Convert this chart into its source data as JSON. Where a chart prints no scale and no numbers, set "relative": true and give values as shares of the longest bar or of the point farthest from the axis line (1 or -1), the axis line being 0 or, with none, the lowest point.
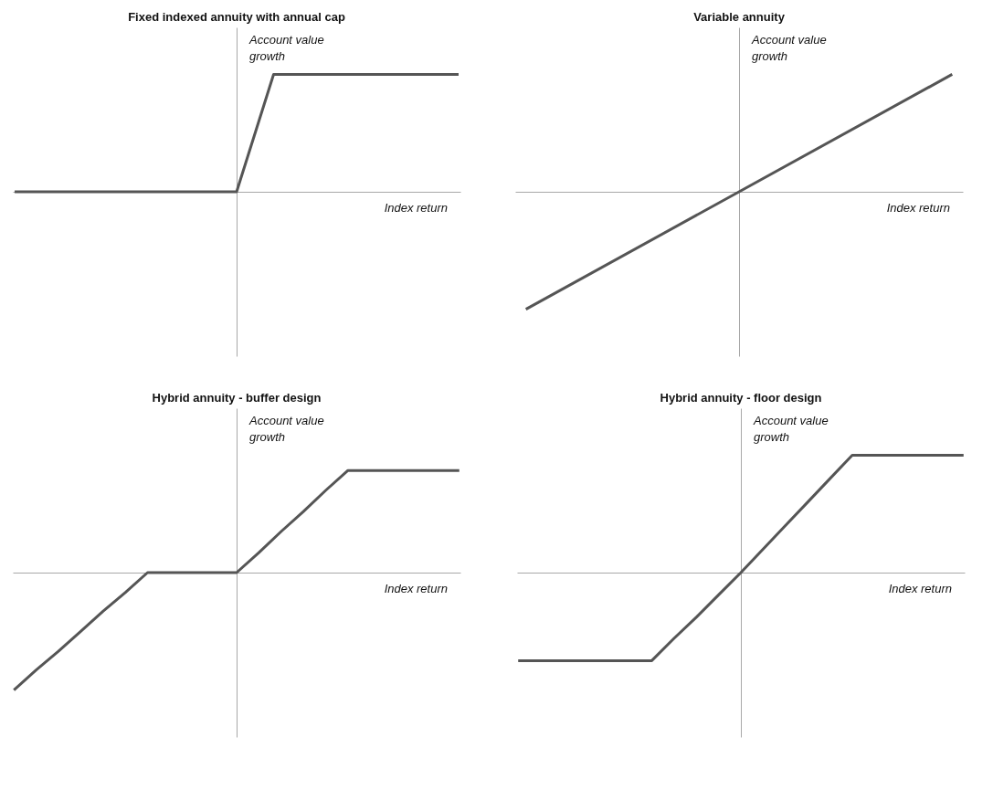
{
  "chart_data": [
    {
      "type": "line",
      "title": "Fixed indexed annuity with annual cap",
      "xlabel": "Index return",
      "ylabel": "Account value growth",
      "relative": true,
      "categories": [
        null,
        null,
        null,
        null,
        null,
        null,
        null,
        null,
        null,
        null,
        null,
        null,
        null
      ],
      "series": [
        {
          "color": "#555555",
          "values": [
            0,
            0,
            0,
            0,
            0,
            0,
            0,
            1,
            1,
            1,
            1,
            1,
            1
          ]
        }
      ]
    },
    {
      "type": "line",
      "title": "Variable annuity",
      "xlabel": "Index return",
      "ylabel": "Account value growth",
      "relative": true,
      "categories": [
        null,
        null,
        null
      ],
      "series": [
        {
          "color": "#555555",
          "values": [
            -1,
            0,
            1
          ]
        }
      ]
    },
    {
      "type": "line",
      "title": "Hybrid annuity - buffer design",
      "xlabel": "Index return",
      "ylabel": "Account value growth",
      "relative": true,
      "categories": [
        null,
        null,
        null,
        null,
        null,
        null,
        null,
        null,
        null,
        null,
        null,
        null,
        null,
        null,
        null,
        null,
        null,
        null,
        null,
        null,
        null
      ],
      "series": [
        {
          "color": "#555555",
          "values": [
            -1,
            -0.83,
            -0.67,
            -0.5,
            -0.33,
            -0.17,
            0,
            0,
            0,
            0,
            0,
            0.17,
            0.35,
            0.52,
            0.7,
            0.87,
            0.87,
            0.87,
            0.87,
            0.87,
            0.87
          ]
        }
      ]
    },
    {
      "type": "line",
      "title": "Hybrid annuity - floor design",
      "xlabel": "Index return",
      "ylabel": "Account value growth",
      "relative": true,
      "categories": [
        null,
        null,
        null,
        null,
        null,
        null,
        null,
        null,
        null,
        null,
        null,
        null,
        null,
        null,
        null,
        null,
        null,
        null,
        null,
        null,
        null
      ],
      "series": [
        {
          "color": "#555555",
          "values": [
            -0.75,
            -0.75,
            -0.75,
            -0.75,
            -0.75,
            -0.75,
            -0.75,
            -0.56,
            -0.38,
            -0.19,
            0,
            0.2,
            0.4,
            0.6,
            0.8,
            1,
            1,
            1,
            1,
            1,
            1
          ]
        }
      ]
    }
  ]
}
